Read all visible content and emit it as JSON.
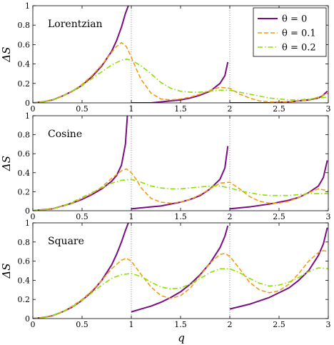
{
  "figure": {
    "ylabel": "ΔS",
    "xlabel": "q"
  },
  "legend": {
    "placement": "top-right of first panel",
    "entries": [
      {
        "label": "θ = 0",
        "color": "#7b0d82",
        "dash": "solid"
      },
      {
        "label": "θ = 0.1",
        "color": "#f39c12",
        "dash": "dashed"
      },
      {
        "label": "θ = 0.2",
        "color": "#8ee000",
        "dash": "dash-dot"
      }
    ]
  },
  "chart_data": [
    {
      "type": "line",
      "title": "Lorentzian",
      "xlim": [
        0,
        3
      ],
      "ylim": [
        0,
        1
      ],
      "xticks": [
        "0",
        "0.5",
        "1",
        "1.5",
        "2",
        "2.5",
        "3"
      ],
      "yticks": [
        "0",
        "0.2",
        "0.4",
        "0.6",
        "0.8",
        "1"
      ],
      "vlines": [
        1,
        2
      ],
      "series": [
        {
          "name": "θ = 0",
          "segments": [
            {
              "x": [
                0,
                0.1,
                0.2,
                0.3,
                0.4,
                0.5,
                0.6,
                0.7,
                0.8,
                0.85,
                0.9,
                0.94,
                0.97
              ],
              "y": [
                0,
                0.01,
                0.03,
                0.07,
                0.12,
                0.18,
                0.27,
                0.38,
                0.53,
                0.64,
                0.78,
                0.92,
                1.0
              ]
            },
            {
              "x": [
                1.0,
                1.1,
                1.2,
                1.3,
                1.4,
                1.5,
                1.6,
                1.7,
                1.8,
                1.9,
                1.95,
                1.98
              ],
              "y": [
                0,
                0.0,
                0.0,
                0.01,
                0.02,
                0.03,
                0.05,
                0.08,
                0.12,
                0.2,
                0.28,
                0.42
              ]
            },
            {
              "x": [
                2.0,
                2.2,
                2.4,
                2.6,
                2.7,
                2.8,
                2.9,
                2.95,
                2.99
              ],
              "y": [
                0,
                0.0,
                0.0,
                0.01,
                0.02,
                0.03,
                0.05,
                0.08,
                0.12
              ]
            }
          ]
        },
        {
          "name": "θ = 0.1",
          "segments": [
            {
              "x": [
                0,
                0.1,
                0.2,
                0.3,
                0.4,
                0.5,
                0.6,
                0.7,
                0.8,
                0.85,
                0.9,
                0.95,
                1.0,
                1.05,
                1.1,
                1.2,
                1.3,
                1.4,
                1.5,
                1.6,
                1.7,
                1.8,
                1.9,
                2.0,
                2.1,
                2.2,
                2.3,
                2.4,
                2.5,
                2.6,
                2.7,
                2.8,
                2.9,
                3.0
              ],
              "y": [
                0,
                0.01,
                0.03,
                0.07,
                0.12,
                0.19,
                0.28,
                0.39,
                0.52,
                0.58,
                0.62,
                0.58,
                0.47,
                0.35,
                0.24,
                0.1,
                0.04,
                0.03,
                0.04,
                0.06,
                0.09,
                0.13,
                0.16,
                0.15,
                0.09,
                0.05,
                0.02,
                0.01,
                0.01,
                0.01,
                0.02,
                0.03,
                0.06,
                0.1
              ]
            }
          ]
        },
        {
          "name": "θ = 0.2",
          "segments": [
            {
              "x": [
                0,
                0.1,
                0.2,
                0.3,
                0.4,
                0.5,
                0.6,
                0.7,
                0.8,
                0.9,
                0.95,
                1.0,
                1.1,
                1.2,
                1.3,
                1.4,
                1.5,
                1.6,
                1.7,
                1.8,
                1.9,
                2.0,
                2.1,
                2.2,
                2.3,
                2.4,
                2.5,
                2.6,
                2.7,
                2.8,
                2.9,
                3.0
              ],
              "y": [
                0,
                0.01,
                0.03,
                0.07,
                0.12,
                0.18,
                0.25,
                0.32,
                0.39,
                0.44,
                0.45,
                0.44,
                0.38,
                0.3,
                0.21,
                0.15,
                0.12,
                0.11,
                0.11,
                0.12,
                0.13,
                0.13,
                0.11,
                0.09,
                0.07,
                0.05,
                0.04,
                0.03,
                0.03,
                0.04,
                0.05,
                0.06
              ]
            }
          ]
        }
      ]
    },
    {
      "type": "line",
      "title": "Cosine",
      "xlim": [
        0,
        3
      ],
      "ylim": [
        0,
        1
      ],
      "xticks": [
        "0",
        "0.5",
        "1",
        "1.5",
        "2",
        "2.5",
        "3"
      ],
      "yticks": [
        "0",
        "0.2",
        "0.4",
        "0.6",
        "0.8",
        "1"
      ],
      "vlines": [
        1,
        2
      ],
      "series": [
        {
          "name": "θ = 0",
          "segments": [
            {
              "x": [
                0,
                0.1,
                0.2,
                0.3,
                0.4,
                0.5,
                0.6,
                0.7,
                0.8,
                0.85,
                0.9,
                0.94,
                0.96
              ],
              "y": [
                0,
                0.01,
                0.02,
                0.05,
                0.08,
                0.12,
                0.17,
                0.23,
                0.31,
                0.37,
                0.48,
                0.7,
                1.0
              ]
            },
            {
              "x": [
                1.0,
                1.1,
                1.2,
                1.3,
                1.4,
                1.5,
                1.6,
                1.7,
                1.8,
                1.9,
                1.95,
                1.98
              ],
              "y": [
                0.02,
                0.03,
                0.04,
                0.05,
                0.07,
                0.09,
                0.12,
                0.16,
                0.23,
                0.33,
                0.45,
                0.68
              ]
            },
            {
              "x": [
                2.0,
                2.2,
                2.4,
                2.6,
                2.7,
                2.8,
                2.9,
                2.95,
                2.99
              ],
              "y": [
                0.02,
                0.04,
                0.07,
                0.11,
                0.14,
                0.19,
                0.26,
                0.35,
                0.53
              ]
            }
          ]
        },
        {
          "name": "θ = 0.1",
          "segments": [
            {
              "x": [
                0,
                0.1,
                0.2,
                0.3,
                0.4,
                0.5,
                0.6,
                0.7,
                0.8,
                0.9,
                0.95,
                1.0,
                1.05,
                1.1,
                1.2,
                1.3,
                1.4,
                1.5,
                1.6,
                1.7,
                1.8,
                1.9,
                2.0,
                2.1,
                2.2,
                2.3,
                2.4,
                2.5,
                2.6,
                2.7,
                2.8,
                2.9,
                3.0
              ],
              "y": [
                0,
                0.01,
                0.02,
                0.05,
                0.08,
                0.13,
                0.18,
                0.25,
                0.34,
                0.42,
                0.44,
                0.4,
                0.33,
                0.24,
                0.13,
                0.09,
                0.08,
                0.09,
                0.12,
                0.17,
                0.23,
                0.29,
                0.3,
                0.23,
                0.15,
                0.1,
                0.08,
                0.08,
                0.1,
                0.14,
                0.19,
                0.23,
                0.21
              ]
            }
          ]
        },
        {
          "name": "θ = 0.2",
          "segments": [
            {
              "x": [
                0,
                0.1,
                0.2,
                0.3,
                0.4,
                0.5,
                0.6,
                0.7,
                0.8,
                0.9,
                1.0,
                1.1,
                1.2,
                1.3,
                1.4,
                1.5,
                1.6,
                1.7,
                1.8,
                1.9,
                2.0,
                2.1,
                2.2,
                2.3,
                2.4,
                2.5,
                2.6,
                2.7,
                2.8,
                2.9,
                3.0
              ],
              "y": [
                0,
                0.01,
                0.02,
                0.05,
                0.09,
                0.14,
                0.19,
                0.24,
                0.29,
                0.32,
                0.33,
                0.3,
                0.26,
                0.24,
                0.23,
                0.23,
                0.24,
                0.25,
                0.26,
                0.26,
                0.24,
                0.21,
                0.19,
                0.17,
                0.16,
                0.16,
                0.16,
                0.17,
                0.18,
                0.18,
                0.18
              ]
            }
          ]
        }
      ]
    },
    {
      "type": "line",
      "title": "Square",
      "xlim": [
        0,
        3
      ],
      "ylim": [
        0,
        1
      ],
      "xticks": [
        "0",
        "0.5",
        "1",
        "1.5",
        "2",
        "2.5",
        "3"
      ],
      "yticks": [
        "0",
        "0.2",
        "0.4",
        "0.6",
        "0.8",
        "1"
      ],
      "vlines": [
        1,
        2
      ],
      "series": [
        {
          "name": "θ = 0",
          "segments": [
            {
              "x": [
                0,
                0.1,
                0.2,
                0.3,
                0.4,
                0.5,
                0.6,
                0.7,
                0.8,
                0.85,
                0.9,
                0.94,
                0.97
              ],
              "y": [
                0,
                0.01,
                0.03,
                0.07,
                0.12,
                0.19,
                0.28,
                0.4,
                0.56,
                0.67,
                0.8,
                0.92,
                1.0
              ]
            },
            {
              "x": [
                1.0,
                1.1,
                1.2,
                1.3,
                1.4,
                1.5,
                1.6,
                1.7,
                1.8,
                1.9,
                1.95,
                1.98
              ],
              "y": [
                0.07,
                0.1,
                0.13,
                0.17,
                0.22,
                0.28,
                0.36,
                0.46,
                0.58,
                0.74,
                0.86,
                0.97
              ]
            },
            {
              "x": [
                2.0,
                2.2,
                2.4,
                2.6,
                2.7,
                2.8,
                2.9,
                2.95,
                2.99
              ],
              "y": [
                0.1,
                0.15,
                0.22,
                0.32,
                0.4,
                0.5,
                0.66,
                0.78,
                0.95
              ]
            }
          ]
        },
        {
          "name": "θ = 0.1",
          "segments": [
            {
              "x": [
                0,
                0.1,
                0.2,
                0.3,
                0.4,
                0.5,
                0.6,
                0.7,
                0.8,
                0.9,
                0.95,
                1.0,
                1.1,
                1.2,
                1.3,
                1.4,
                1.5,
                1.6,
                1.7,
                1.8,
                1.9,
                1.95,
                2.0,
                2.1,
                2.2,
                2.3,
                2.4,
                2.5,
                2.6,
                2.7,
                2.8,
                2.9,
                2.95,
                3.0
              ],
              "y": [
                0,
                0.01,
                0.03,
                0.07,
                0.13,
                0.2,
                0.29,
                0.4,
                0.52,
                0.61,
                0.63,
                0.6,
                0.46,
                0.33,
                0.24,
                0.21,
                0.24,
                0.32,
                0.45,
                0.58,
                0.67,
                0.68,
                0.65,
                0.52,
                0.38,
                0.3,
                0.27,
                0.29,
                0.36,
                0.47,
                0.6,
                0.69,
                0.71,
                0.7
              ]
            }
          ]
        },
        {
          "name": "θ = 0.2",
          "segments": [
            {
              "x": [
                0,
                0.1,
                0.2,
                0.3,
                0.4,
                0.5,
                0.6,
                0.7,
                0.8,
                0.9,
                1.0,
                1.1,
                1.2,
                1.3,
                1.4,
                1.5,
                1.6,
                1.7,
                1.8,
                1.9,
                2.0,
                2.1,
                2.2,
                2.3,
                2.4,
                2.5,
                2.6,
                2.7,
                2.8,
                2.9,
                3.0
              ],
              "y": [
                0,
                0.01,
                0.03,
                0.07,
                0.12,
                0.19,
                0.27,
                0.35,
                0.42,
                0.46,
                0.47,
                0.44,
                0.38,
                0.33,
                0.31,
                0.32,
                0.36,
                0.42,
                0.48,
                0.52,
                0.52,
                0.48,
                0.42,
                0.37,
                0.34,
                0.35,
                0.38,
                0.43,
                0.49,
                0.53,
                0.52
              ]
            }
          ]
        }
      ]
    }
  ]
}
